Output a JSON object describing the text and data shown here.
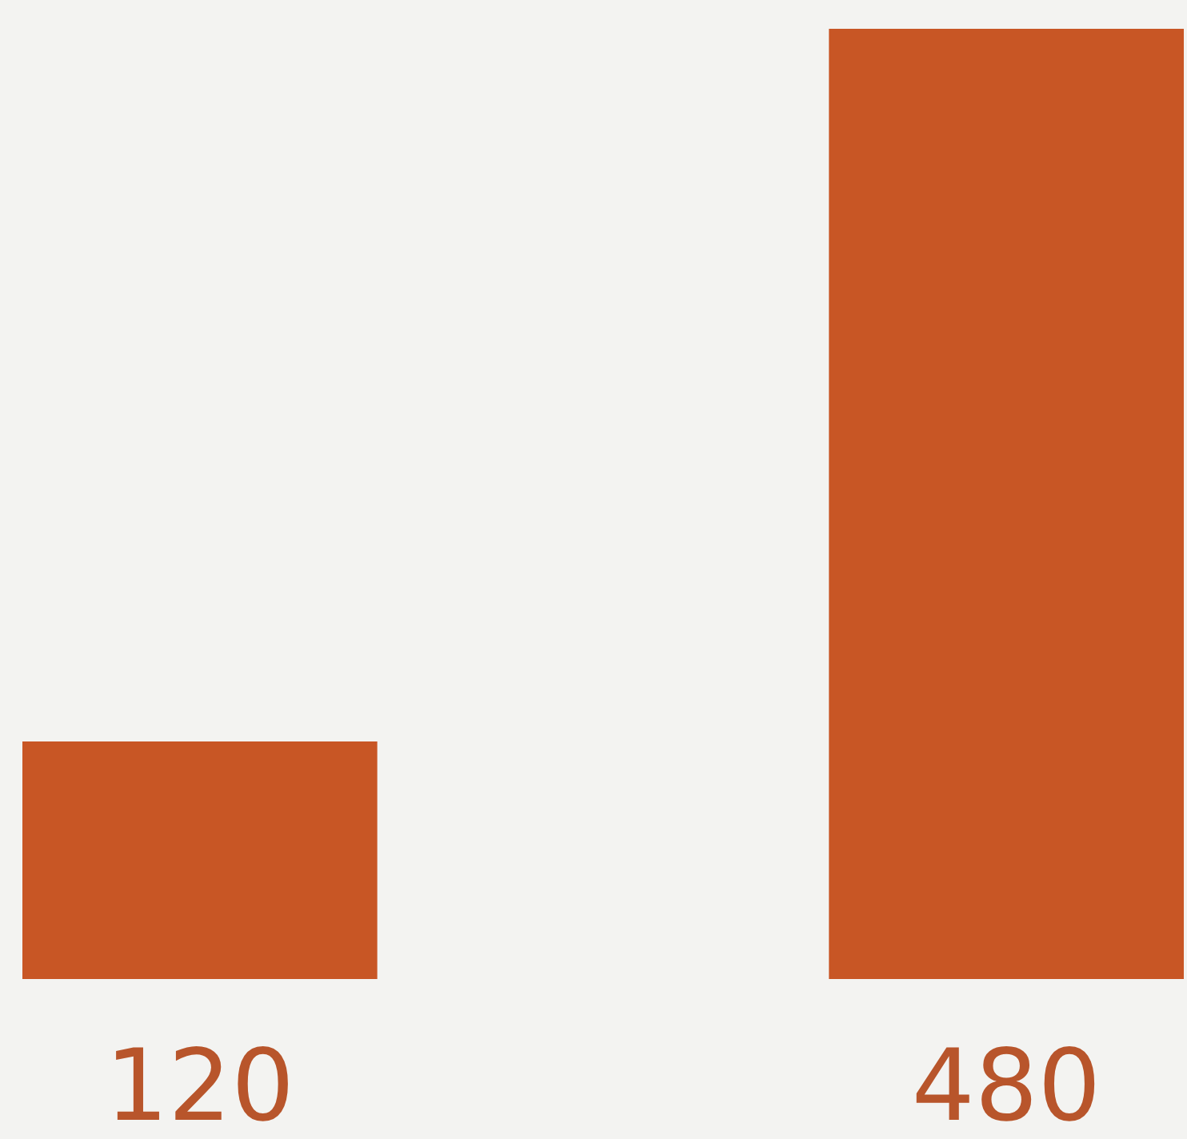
{
  "chart_data": {
    "type": "bar",
    "categories": [
      null,
      null
    ],
    "values": [
      120,
      480
    ],
    "color": "#c85625",
    "data_labels": true
  }
}
